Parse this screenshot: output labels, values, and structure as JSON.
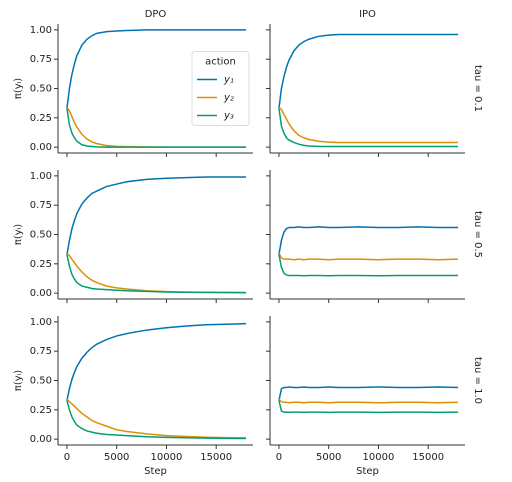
{
  "chart_data": [
    {
      "type": "line",
      "title": "DPO",
      "ylabel": "π(yₗ)",
      "x": [
        0,
        250,
        500,
        750,
        1000,
        1500,
        2000,
        2500,
        3000,
        4000,
        5000,
        6000,
        8000,
        10000,
        12000,
        14000,
        16000,
        18000
      ],
      "xlim": [
        -900,
        18700
      ],
      "ylim": [
        -0.05,
        1.05
      ],
      "xticks": [
        0,
        5000,
        10000,
        15000
      ],
      "yticks": [
        {
          "value": 0,
          "label": "0.00"
        },
        {
          "value": 0.25,
          "label": "0.25"
        },
        {
          "value": 0.5,
          "label": "0.50"
        },
        {
          "value": 0.75,
          "label": "0.75"
        },
        {
          "value": 1,
          "label": "1.00"
        }
      ],
      "legend": {
        "title": "action",
        "position": "center right"
      },
      "series": [
        {
          "name": "y₁",
          "color": "#0173b2",
          "values": [
            0.33,
            0.5,
            0.62,
            0.71,
            0.78,
            0.87,
            0.92,
            0.95,
            0.97,
            0.985,
            0.99,
            0.995,
            1,
            1,
            1,
            1,
            1,
            1
          ]
        },
        {
          "name": "y₂",
          "color": "#de8f05",
          "values": [
            0.34,
            0.31,
            0.26,
            0.21,
            0.17,
            0.11,
            0.07,
            0.045,
            0.03,
            0.013,
            0.007,
            0.004,
            0.001,
            0,
            0,
            0,
            0,
            0
          ]
        },
        {
          "name": "y₃",
          "color": "#029e73",
          "values": [
            0.33,
            0.19,
            0.12,
            0.08,
            0.05,
            0.02,
            0.01,
            0.005,
            0.002,
            0,
            0,
            0,
            0,
            0,
            0,
            0,
            0,
            0
          ]
        }
      ]
    },
    {
      "type": "line",
      "title": "IPO",
      "facet_label": "tau = 0.1",
      "x": [
        0,
        250,
        500,
        750,
        1000,
        1500,
        2000,
        2500,
        3000,
        4000,
        5000,
        6000,
        8000,
        10000,
        12000,
        14000,
        16000,
        18000
      ],
      "xlim": [
        -900,
        18700
      ],
      "ylim": [
        -0.05,
        1.05
      ],
      "xticks": [
        0,
        5000,
        10000,
        15000
      ],
      "yticks": [
        0,
        0.25,
        0.5,
        0.75,
        1
      ],
      "series": [
        {
          "color": "#0173b2",
          "values": [
            0.33,
            0.5,
            0.6,
            0.68,
            0.74,
            0.82,
            0.87,
            0.9,
            0.92,
            0.945,
            0.955,
            0.96,
            0.96,
            0.96,
            0.96,
            0.96,
            0.96,
            0.96
          ]
        },
        {
          "color": "#de8f05",
          "values": [
            0.34,
            0.32,
            0.28,
            0.24,
            0.2,
            0.14,
            0.1,
            0.08,
            0.065,
            0.05,
            0.043,
            0.04,
            0.04,
            0.04,
            0.04,
            0.04,
            0.04,
            0.04
          ]
        },
        {
          "color": "#029e73",
          "values": [
            0.33,
            0.18,
            0.12,
            0.08,
            0.06,
            0.04,
            0.025,
            0.015,
            0.01,
            0.006,
            0.005,
            0.005,
            0.005,
            0.005,
            0.005,
            0.005,
            0.005,
            0.005
          ]
        }
      ]
    },
    {
      "type": "line",
      "ylabel": "π(yₗ)",
      "x": [
        0,
        250,
        500,
        750,
        1000,
        1500,
        2000,
        2500,
        3000,
        4000,
        5000,
        6000,
        8000,
        10000,
        12000,
        14000,
        16000,
        18000
      ],
      "xlim": [
        -900,
        18700
      ],
      "ylim": [
        -0.05,
        1.05
      ],
      "xticks": [
        0,
        5000,
        10000,
        15000
      ],
      "yticks": [
        {
          "value": 0,
          "label": "0.00"
        },
        {
          "value": 0.25,
          "label": "0.25"
        },
        {
          "value": 0.5,
          "label": "0.50"
        },
        {
          "value": 0.75,
          "label": "0.75"
        },
        {
          "value": 1,
          "label": "1.00"
        }
      ],
      "series": [
        {
          "color": "#0173b2",
          "values": [
            0.33,
            0.45,
            0.55,
            0.62,
            0.68,
            0.76,
            0.81,
            0.85,
            0.87,
            0.91,
            0.93,
            0.95,
            0.97,
            0.98,
            0.985,
            0.99,
            0.99,
            0.99
          ]
        },
        {
          "color": "#de8f05",
          "values": [
            0.34,
            0.32,
            0.29,
            0.26,
            0.23,
            0.18,
            0.14,
            0.11,
            0.09,
            0.06,
            0.045,
            0.035,
            0.02,
            0.013,
            0.009,
            0.006,
            0.005,
            0.004
          ]
        },
        {
          "color": "#029e73",
          "values": [
            0.33,
            0.23,
            0.16,
            0.12,
            0.09,
            0.06,
            0.05,
            0.04,
            0.035,
            0.03,
            0.025,
            0.02,
            0.015,
            0.01,
            0.008,
            0.006,
            0.005,
            0.004
          ]
        }
      ]
    },
    {
      "type": "line",
      "facet_label": "tau = 0.5",
      "x": [
        0,
        250,
        500,
        750,
        1000,
        1500,
        2000,
        2500,
        3000,
        4000,
        5000,
        6000,
        8000,
        10000,
        12000,
        14000,
        16000,
        18000
      ],
      "xlim": [
        -900,
        18700
      ],
      "ylim": [
        -0.05,
        1.05
      ],
      "xticks": [
        0,
        5000,
        10000,
        15000
      ],
      "yticks": [
        0,
        0.25,
        0.5,
        0.75,
        1
      ],
      "series": [
        {
          "color": "#0173b2",
          "values": [
            0.33,
            0.45,
            0.52,
            0.55,
            0.56,
            0.56,
            0.565,
            0.56,
            0.56,
            0.565,
            0.56,
            0.56,
            0.565,
            0.56,
            0.56,
            0.565,
            0.56,
            0.56
          ]
        },
        {
          "color": "#de8f05",
          "values": [
            0.34,
            0.3,
            0.29,
            0.29,
            0.29,
            0.285,
            0.29,
            0.285,
            0.29,
            0.29,
            0.285,
            0.29,
            0.29,
            0.285,
            0.29,
            0.29,
            0.285,
            0.29
          ]
        },
        {
          "color": "#029e73",
          "values": [
            0.33,
            0.22,
            0.17,
            0.155,
            0.15,
            0.15,
            0.15,
            0.148,
            0.15,
            0.15,
            0.148,
            0.15,
            0.15,
            0.148,
            0.15,
            0.15,
            0.15,
            0.15
          ]
        }
      ]
    },
    {
      "type": "line",
      "ylabel": "π(yₗ)",
      "xlabel": "Step",
      "x": [
        0,
        250,
        500,
        750,
        1000,
        1500,
        2000,
        2500,
        3000,
        4000,
        5000,
        6000,
        8000,
        10000,
        12000,
        14000,
        16000,
        18000
      ],
      "xlim": [
        -900,
        18700
      ],
      "ylim": [
        -0.05,
        1.05
      ],
      "xticks": [
        0,
        5000,
        10000,
        15000
      ],
      "yticks": [
        {
          "value": 0,
          "label": "0.00"
        },
        {
          "value": 0.25,
          "label": "0.25"
        },
        {
          "value": 0.5,
          "label": "0.50"
        },
        {
          "value": 0.75,
          "label": "0.75"
        },
        {
          "value": 1,
          "label": "1.00"
        }
      ],
      "series": [
        {
          "color": "#0173b2",
          "values": [
            0.33,
            0.43,
            0.51,
            0.57,
            0.62,
            0.69,
            0.74,
            0.78,
            0.81,
            0.85,
            0.88,
            0.9,
            0.93,
            0.95,
            0.965,
            0.975,
            0.98,
            0.985
          ]
        },
        {
          "color": "#de8f05",
          "values": [
            0.34,
            0.32,
            0.3,
            0.28,
            0.26,
            0.22,
            0.19,
            0.16,
            0.14,
            0.11,
            0.08,
            0.065,
            0.045,
            0.03,
            0.022,
            0.016,
            0.013,
            0.011
          ]
        },
        {
          "color": "#029e73",
          "values": [
            0.33,
            0.25,
            0.19,
            0.15,
            0.12,
            0.09,
            0.07,
            0.06,
            0.05,
            0.04,
            0.035,
            0.03,
            0.02,
            0.015,
            0.012,
            0.009,
            0.007,
            0.005
          ]
        }
      ]
    },
    {
      "type": "line",
      "xlabel": "Step",
      "facet_label": "tau = 1.0",
      "x": [
        0,
        250,
        500,
        750,
        1000,
        1500,
        2000,
        2500,
        3000,
        4000,
        5000,
        6000,
        8000,
        10000,
        12000,
        14000,
        16000,
        18000
      ],
      "xlim": [
        -900,
        18700
      ],
      "ylim": [
        -0.05,
        1.05
      ],
      "xticks": [
        0,
        5000,
        10000,
        15000
      ],
      "yticks": [
        0,
        0.25,
        0.5,
        0.75,
        1
      ],
      "series": [
        {
          "color": "#0173b2",
          "values": [
            0.33,
            0.43,
            0.44,
            0.44,
            0.445,
            0.44,
            0.44,
            0.445,
            0.44,
            0.44,
            0.445,
            0.44,
            0.44,
            0.445,
            0.44,
            0.44,
            0.445,
            0.44
          ]
        },
        {
          "color": "#de8f05",
          "values": [
            0.34,
            0.32,
            0.315,
            0.315,
            0.31,
            0.315,
            0.315,
            0.31,
            0.315,
            0.315,
            0.31,
            0.315,
            0.315,
            0.31,
            0.315,
            0.315,
            0.31,
            0.315
          ]
        },
        {
          "color": "#029e73",
          "values": [
            0.33,
            0.24,
            0.23,
            0.23,
            0.228,
            0.23,
            0.23,
            0.228,
            0.23,
            0.23,
            0.228,
            0.23,
            0.23,
            0.228,
            0.23,
            0.23,
            0.228,
            0.23
          ]
        }
      ]
    }
  ]
}
